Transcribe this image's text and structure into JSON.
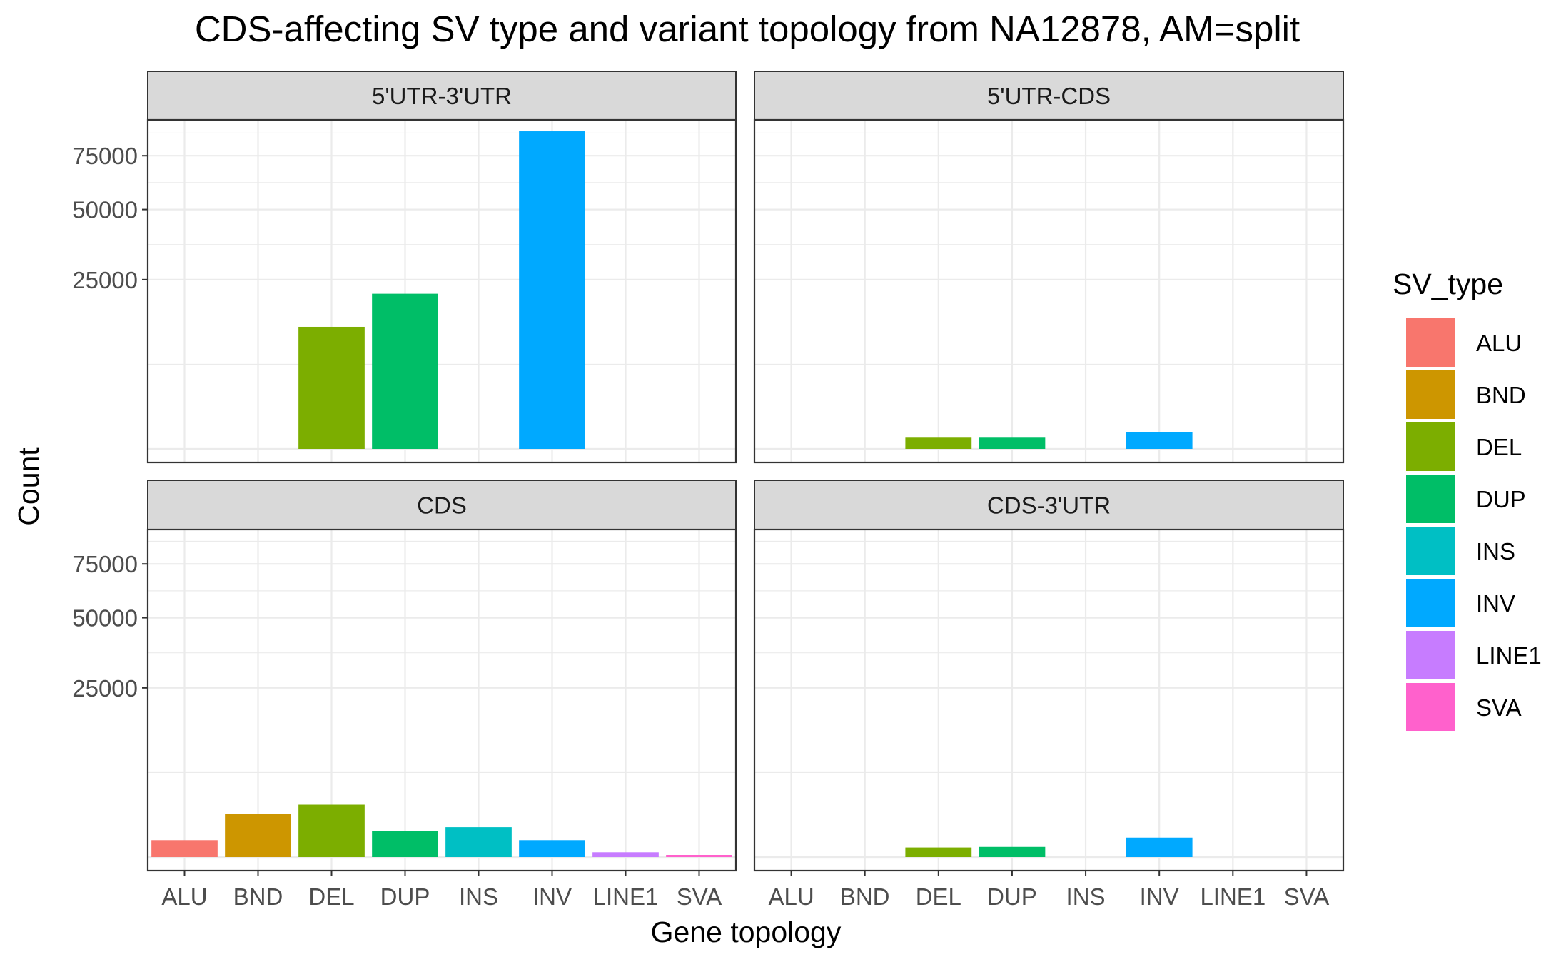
{
  "chart_data": {
    "type": "bar",
    "title": "CDS-affecting SV type and variant topology from NA12878, AM=split",
    "xlabel": "Gene topology",
    "ylabel": "Count",
    "y_scale": "sqrt",
    "ylim": [
      0,
      100000
    ],
    "y_ticks": [
      25000,
      50000,
      75000
    ],
    "y_tick_labels": [
      "25000",
      "50000",
      "75000"
    ],
    "categories": [
      "ALU",
      "BND",
      "DEL",
      "DUP",
      "INS",
      "INV",
      "LINE1",
      "SVA"
    ],
    "legend": {
      "title": "SV_type",
      "position": "right",
      "entries": [
        "ALU",
        "BND",
        "DEL",
        "DUP",
        "INS",
        "INV",
        "LINE1",
        "SVA"
      ]
    },
    "colors": {
      "ALU": "#F8766D",
      "BND": "#CD9600",
      "DEL": "#7CAE00",
      "DUP": "#00BE67",
      "INS": "#00BFC4",
      "INV": "#00A9FF",
      "LINE1": "#C77CFF",
      "SVA": "#FF61CC"
    },
    "grid": true,
    "panels": [
      {
        "facet": "5'UTR-3'UTR",
        "values": {
          "ALU": 0,
          "BND": 0,
          "DEL": 13000,
          "DUP": 21000,
          "INS": 0,
          "INV": 88000,
          "LINE1": 0,
          "SVA": 0
        }
      },
      {
        "facet": "5'UTR-CDS",
        "values": {
          "ALU": 0,
          "BND": 0,
          "DEL": 110,
          "DUP": 110,
          "INS": 0,
          "INV": 250,
          "LINE1": 0,
          "SVA": 0
        }
      },
      {
        "facet": "CDS",
        "values": {
          "ALU": 250,
          "BND": 1600,
          "DEL": 2400,
          "DUP": 580,
          "INS": 780,
          "INV": 250,
          "LINE1": 20,
          "SVA": 4
        }
      },
      {
        "facet": "CDS-3'UTR",
        "values": {
          "ALU": 0,
          "BND": 0,
          "DEL": 80,
          "DUP": 90,
          "INS": 0,
          "INV": 330,
          "LINE1": 0,
          "SVA": 0
        }
      }
    ]
  }
}
